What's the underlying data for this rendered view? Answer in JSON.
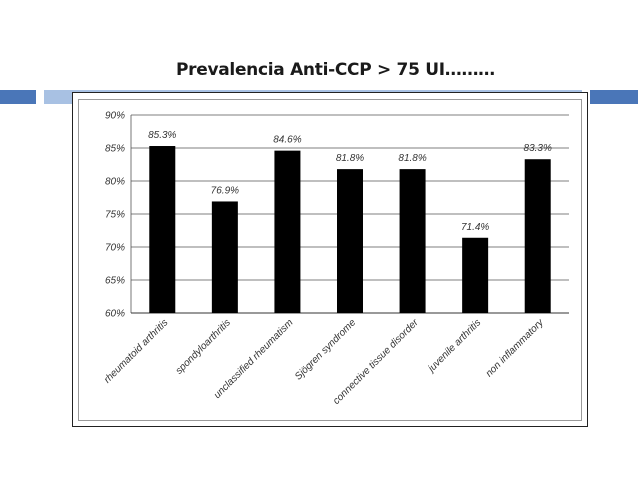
{
  "slide": {
    "title": "Prevalencia Anti-CCP  > 75 UI………"
  },
  "colors": {
    "accent_dark": "#4a76b8",
    "accent_light": "#a8c1e3",
    "bar": "#000000"
  },
  "chart_data": {
    "type": "bar",
    "title": "",
    "xlabel": "",
    "ylabel": "",
    "categories": [
      "rheumatoid arthritis",
      "spondyloarthritis",
      "unclassified rheumatism",
      "Sjögren syndrome",
      "connective tissue disorder",
      "juvenile arthritis",
      "non inflammatory"
    ],
    "values": [
      85.3,
      76.9,
      84.6,
      81.8,
      81.8,
      71.4,
      83.3
    ],
    "data_labels": [
      "85.3%",
      "76.9%",
      "84.6%",
      "81.8%",
      "81.8%",
      "71.4%",
      "83.3%"
    ],
    "yticks": [
      90,
      85,
      80,
      75,
      70,
      65,
      60
    ],
    "ytick_labels": [
      "90%",
      "85%",
      "80%",
      "75%",
      "70%",
      "65%",
      "60%"
    ],
    "ylim": [
      60,
      90
    ],
    "grid": true
  }
}
